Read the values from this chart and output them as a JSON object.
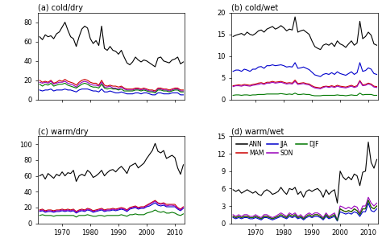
{
  "years": [
    1962,
    1963,
    1964,
    1965,
    1966,
    1967,
    1968,
    1969,
    1970,
    1971,
    1972,
    1973,
    1974,
    1975,
    1976,
    1977,
    1978,
    1979,
    1980,
    1981,
    1982,
    1983,
    1984,
    1985,
    1986,
    1987,
    1988,
    1989,
    1990,
    1991,
    1992,
    1993,
    1994,
    1995,
    1996,
    1997,
    1998,
    1999,
    2000,
    2001,
    2002,
    2003,
    2004,
    2005,
    2006,
    2007,
    2008,
    2009,
    2010,
    2011,
    2012,
    2013
  ],
  "panels": {
    "a": {
      "title": "(a) cold/dry",
      "ylim": [
        0,
        90
      ],
      "yticks": [
        0,
        20,
        40,
        60,
        80
      ],
      "ANN": [
        65,
        62,
        67,
        65,
        66,
        63,
        68,
        70,
        75,
        80,
        72,
        65,
        63,
        55,
        65,
        73,
        76,
        74,
        63,
        58,
        61,
        56,
        76,
        53,
        51,
        55,
        51,
        50,
        47,
        51,
        44,
        38,
        36,
        39,
        44,
        41,
        39,
        41,
        40,
        38,
        36,
        34,
        43,
        44,
        40,
        39,
        38,
        41,
        42,
        44,
        37,
        39
      ],
      "MAM": [
        20,
        18,
        19,
        18,
        20,
        17,
        18,
        20,
        19,
        21,
        19,
        18,
        17,
        15,
        18,
        20,
        21,
        20,
        18,
        17,
        17,
        15,
        20,
        15,
        14,
        15,
        14,
        14,
        13,
        14,
        12,
        11,
        11,
        11,
        12,
        12,
        11,
        12,
        11,
        10,
        10,
        9,
        12,
        12,
        11,
        11,
        10,
        11,
        12,
        12,
        10,
        10
      ],
      "JJA": [
        10,
        9,
        10,
        10,
        11,
        9,
        10,
        10,
        10,
        11,
        10,
        10,
        9,
        8,
        10,
        11,
        11,
        11,
        10,
        9,
        9,
        8,
        11,
        8,
        8,
        9,
        8,
        7,
        7,
        8,
        7,
        6,
        6,
        6,
        7,
        7,
        6,
        7,
        7,
        6,
        5,
        5,
        7,
        7,
        6,
        6,
        6,
        7,
        7,
        7,
        5,
        5
      ],
      "SON": [
        18,
        17,
        18,
        17,
        19,
        16,
        17,
        18,
        18,
        19,
        17,
        16,
        15,
        13,
        16,
        18,
        19,
        18,
        16,
        15,
        15,
        14,
        18,
        13,
        13,
        14,
        12,
        12,
        11,
        13,
        11,
        10,
        10,
        10,
        11,
        11,
        10,
        11,
        10,
        9,
        9,
        8,
        11,
        11,
        10,
        10,
        9,
        10,
        11,
        11,
        9,
        9
      ],
      "DJF": [
        16,
        14,
        16,
        15,
        17,
        14,
        15,
        16,
        16,
        17,
        15,
        14,
        13,
        12,
        14,
        16,
        17,
        16,
        14,
        13,
        13,
        12,
        16,
        12,
        11,
        12,
        11,
        11,
        10,
        11,
        9,
        9,
        9,
        9,
        10,
        10,
        9,
        10,
        9,
        8,
        8,
        7,
        10,
        10,
        9,
        9,
        8,
        9,
        10,
        10,
        8,
        8
      ]
    },
    "b": {
      "title": "(b) cold/wet",
      "ylim": [
        0,
        20
      ],
      "yticks": [
        0,
        5,
        10,
        15,
        20
      ],
      "ANN": [
        14.5,
        14.8,
        15.0,
        15.2,
        14.8,
        15.5,
        15.0,
        14.8,
        15.2,
        15.8,
        16.0,
        15.5,
        16.2,
        16.5,
        16.8,
        16.2,
        16.5,
        17.0,
        16.5,
        15.8,
        16.2,
        16.0,
        19.0,
        15.5,
        15.8,
        16.0,
        15.5,
        15.0,
        13.5,
        12.2,
        11.8,
        11.5,
        12.5,
        12.8,
        12.5,
        13.0,
        12.2,
        13.5,
        12.8,
        12.5,
        12.0,
        12.8,
        13.5,
        12.5,
        13.0,
        18.0,
        14.0,
        14.5,
        15.5,
        14.8,
        12.8,
        12.5
      ],
      "MAM": [
        3.2,
        3.3,
        3.4,
        3.3,
        3.5,
        3.4,
        3.3,
        3.5,
        3.6,
        3.8,
        3.9,
        3.7,
        4.0,
        4.0,
        4.2,
        4.0,
        4.1,
        4.2,
        4.0,
        3.8,
        3.9,
        3.8,
        4.5,
        3.7,
        3.8,
        3.9,
        3.7,
        3.6,
        3.2,
        2.9,
        2.8,
        2.7,
        3.0,
        3.1,
        3.0,
        3.2,
        3.0,
        3.3,
        3.1,
        3.0,
        2.9,
        3.1,
        3.3,
        3.0,
        3.2,
        4.4,
        3.4,
        3.5,
        3.8,
        3.6,
        3.1,
        3.0
      ],
      "JJA": [
        6.5,
        6.8,
        6.8,
        6.5,
        7.0,
        6.8,
        6.5,
        7.0,
        7.0,
        7.5,
        7.6,
        7.2,
        7.8,
        7.8,
        8.0,
        7.8,
        7.9,
        8.0,
        7.8,
        7.5,
        7.6,
        7.5,
        8.5,
        7.2,
        7.3,
        7.5,
        7.2,
        6.9,
        6.3,
        5.7,
        5.5,
        5.3,
        5.8,
        6.0,
        5.8,
        6.2,
        5.8,
        6.4,
        6.0,
        5.8,
        5.6,
        6.0,
        6.4,
        5.8,
        6.2,
        8.5,
        6.5,
        6.7,
        7.3,
        7.0,
        6.0,
        5.8
      ],
      "SON": [
        3.0,
        3.2,
        3.2,
        3.1,
        3.3,
        3.2,
        3.1,
        3.3,
        3.4,
        3.5,
        3.7,
        3.5,
        3.8,
        3.8,
        4.0,
        3.8,
        3.9,
        4.0,
        3.8,
        3.6,
        3.7,
        3.6,
        4.2,
        3.5,
        3.6,
        3.7,
        3.5,
        3.4,
        3.0,
        2.7,
        2.6,
        2.5,
        2.8,
        3.0,
        2.8,
        3.0,
        2.8,
        3.1,
        2.9,
        2.8,
        2.7,
        2.9,
        3.1,
        2.8,
        3.0,
        4.2,
        3.2,
        3.3,
        3.6,
        3.4,
        2.9,
        2.8
      ],
      "DJF": [
        1.0,
        1.1,
        1.1,
        1.0,
        1.1,
        1.1,
        1.0,
        1.1,
        1.1,
        1.2,
        1.2,
        1.2,
        1.3,
        1.3,
        1.3,
        1.3,
        1.3,
        1.4,
        1.3,
        1.2,
        1.3,
        1.2,
        1.5,
        1.2,
        1.2,
        1.3,
        1.2,
        1.2,
        1.0,
        0.9,
        0.9,
        0.9,
        1.0,
        1.0,
        1.0,
        1.0,
        1.0,
        1.1,
        1.0,
        1.0,
        0.9,
        1.0,
        1.1,
        1.0,
        1.0,
        1.5,
        1.1,
        1.2,
        1.2,
        1.2,
        1.0,
        1.0
      ]
    },
    "c": {
      "title": "(c) warm/dry",
      "ylim": [
        0,
        110
      ],
      "yticks": [
        0,
        20,
        40,
        60,
        80,
        100
      ],
      "ANN": [
        60,
        62,
        56,
        63,
        60,
        57,
        62,
        60,
        65,
        60,
        64,
        63,
        67,
        53,
        60,
        62,
        60,
        67,
        64,
        58,
        60,
        63,
        67,
        60,
        64,
        67,
        68,
        65,
        69,
        72,
        68,
        63,
        72,
        74,
        76,
        70,
        73,
        76,
        82,
        87,
        92,
        101,
        91,
        89,
        92,
        82,
        84,
        86,
        83,
        70,
        62,
        74
      ],
      "MAM": [
        17,
        18,
        16,
        17,
        17,
        16,
        17,
        17,
        18,
        17,
        18,
        17,
        18,
        15,
        17,
        18,
        17,
        19,
        18,
        16,
        17,
        18,
        19,
        17,
        18,
        18,
        19,
        18,
        19,
        20,
        19,
        17,
        20,
        21,
        22,
        20,
        21,
        21,
        23,
        25,
        27,
        29,
        26,
        25,
        26,
        24,
        24,
        24,
        24,
        20,
        18,
        21
      ],
      "JJA": [
        15,
        16,
        14,
        15,
        15,
        14,
        15,
        15,
        16,
        15,
        16,
        15,
        16,
        13,
        15,
        16,
        15,
        17,
        16,
        14,
        15,
        16,
        17,
        15,
        16,
        16,
        17,
        16,
        17,
        18,
        17,
        15,
        18,
        19,
        20,
        18,
        19,
        19,
        21,
        22,
        24,
        26,
        23,
        22,
        23,
        21,
        21,
        21,
        21,
        18,
        16,
        19
      ],
      "SON": [
        16,
        17,
        15,
        16,
        16,
        15,
        16,
        16,
        17,
        16,
        17,
        16,
        17,
        14,
        16,
        17,
        16,
        18,
        17,
        15,
        16,
        17,
        18,
        16,
        17,
        17,
        18,
        17,
        18,
        19,
        18,
        16,
        19,
        20,
        21,
        19,
        20,
        20,
        22,
        24,
        26,
        28,
        25,
        24,
        25,
        22,
        23,
        23,
        22,
        19,
        17,
        20
      ],
      "DJF": [
        10,
        11,
        10,
        10,
        10,
        9,
        10,
        10,
        10,
        10,
        10,
        10,
        10,
        8,
        10,
        10,
        10,
        11,
        10,
        9,
        9,
        10,
        10,
        9,
        10,
        10,
        10,
        10,
        10,
        11,
        10,
        9,
        11,
        11,
        12,
        11,
        11,
        11,
        13,
        14,
        15,
        17,
        15,
        14,
        15,
        13,
        13,
        14,
        13,
        11,
        10,
        12
      ]
    },
    "d": {
      "title": "(d) warm/wet",
      "ylim": [
        0,
        15
      ],
      "yticks": [
        0,
        3,
        6,
        9,
        12,
        15
      ],
      "ANN": [
        5.8,
        5.5,
        5.8,
        5.2,
        5.5,
        5.8,
        5.5,
        5.2,
        5.5,
        5.0,
        4.8,
        5.5,
        5.8,
        5.5,
        5.0,
        5.2,
        5.5,
        6.2,
        5.5,
        5.0,
        6.0,
        5.8,
        6.2,
        5.0,
        5.5,
        4.5,
        5.5,
        5.8,
        5.5,
        5.8,
        6.0,
        5.5,
        4.5,
        5.8,
        5.0,
        5.5,
        5.8,
        3.5,
        9.0,
        8.0,
        7.5,
        8.0,
        7.5,
        8.5,
        8.2,
        6.5,
        8.8,
        9.0,
        14.0,
        10.5,
        9.5,
        11.0
      ],
      "MAM": [
        1.2,
        1.0,
        1.2,
        1.0,
        1.2,
        1.2,
        1.0,
        1.0,
        1.2,
        1.0,
        0.8,
        1.2,
        1.2,
        1.0,
        0.8,
        1.0,
        1.2,
        1.5,
        1.2,
        1.0,
        1.5,
        1.2,
        1.5,
        1.0,
        1.2,
        0.8,
        1.2,
        1.5,
        1.2,
        1.5,
        1.5,
        1.2,
        0.8,
        1.5,
        1.0,
        1.2,
        1.5,
        0.5,
        2.5,
        2.2,
        2.0,
        2.2,
        2.0,
        2.5,
        2.2,
        1.5,
        2.5,
        2.5,
        4.0,
        2.8,
        2.5,
        3.0
      ],
      "JJA": [
        1.0,
        0.8,
        1.0,
        0.8,
        1.0,
        1.0,
        0.8,
        0.8,
        1.0,
        0.8,
        0.6,
        1.0,
        1.0,
        0.8,
        0.6,
        0.8,
        1.0,
        1.2,
        1.0,
        0.8,
        1.2,
        1.0,
        1.2,
        0.8,
        1.0,
        0.6,
        1.0,
        1.2,
        1.0,
        1.2,
        1.2,
        1.0,
        0.6,
        1.2,
        0.8,
        1.0,
        1.2,
        0.4,
        2.0,
        1.8,
        1.6,
        1.8,
        1.6,
        2.0,
        1.8,
        1.2,
        2.0,
        2.0,
        3.5,
        2.2,
        2.0,
        2.5
      ],
      "SON": [
        1.5,
        1.2,
        1.5,
        1.2,
        1.5,
        1.5,
        1.2,
        1.2,
        1.5,
        1.2,
        1.0,
        1.5,
        1.5,
        1.2,
        1.0,
        1.2,
        1.5,
        1.8,
        1.5,
        1.2,
        1.8,
        1.5,
        1.8,
        1.2,
        1.5,
        1.0,
        1.5,
        1.8,
        1.5,
        1.8,
        1.8,
        1.5,
        1.0,
        1.8,
        1.2,
        1.5,
        1.8,
        0.6,
        3.0,
        2.8,
        2.5,
        2.8,
        2.5,
        3.0,
        2.8,
        1.8,
        3.0,
        3.0,
        4.5,
        3.5,
        3.0,
        3.5
      ],
      "DJF": [
        1.2,
        1.0,
        1.2,
        1.0,
        1.2,
        1.2,
        1.0,
        1.0,
        1.2,
        1.0,
        0.8,
        1.2,
        1.2,
        1.0,
        0.8,
        1.0,
        1.2,
        1.5,
        1.2,
        1.0,
        1.5,
        1.2,
        1.5,
        1.0,
        1.2,
        0.8,
        1.2,
        1.5,
        1.2,
        1.5,
        1.5,
        1.2,
        0.8,
        1.5,
        1.0,
        1.2,
        1.5,
        0.5,
        2.5,
        2.2,
        2.0,
        2.2,
        2.0,
        2.5,
        2.2,
        1.5,
        2.5,
        2.5,
        4.0,
        2.8,
        2.5,
        3.0
      ]
    }
  },
  "colors": {
    "ANN": "#000000",
    "MAM": "#cc0000",
    "JJA": "#0000cc",
    "SON": "#9900bb",
    "DJF": "#007700"
  },
  "linewidth": 0.8,
  "xticks": [
    1970,
    1980,
    1990,
    2000,
    2010
  ],
  "background_color": "#ffffff"
}
